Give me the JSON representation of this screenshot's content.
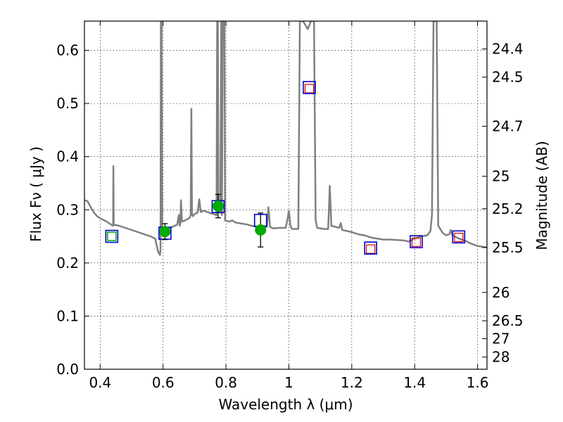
{
  "chart_data": {
    "type": "line",
    "xlabel": "Wavelength  λ (μm)",
    "ylabel": "Flux  Fν  ( μJy )",
    "y2label": "Magnitude (AB)",
    "xlim": [
      0.35,
      1.63
    ],
    "ylim": [
      0.0,
      0.655
    ],
    "grid": true,
    "x_ticks": [
      0.4,
      0.6,
      0.8,
      1.0,
      1.2,
      1.4,
      1.6
    ],
    "x_tick_labels": [
      "0.4",
      "0.6",
      "0.8",
      "1",
      "1.2",
      "1.4",
      "1.6"
    ],
    "y_ticks": [
      0.0,
      0.1,
      0.2,
      0.3,
      0.4,
      0.5,
      0.6
    ],
    "y_tick_labels": [
      "0.0",
      "0.1",
      "0.2",
      "0.3",
      "0.4",
      "0.5",
      "0.6"
    ],
    "y2_ticks": [
      {
        "label": "24.4",
        "flux": 0.6026
      },
      {
        "label": "24.5",
        "flux": 0.5495
      },
      {
        "label": "24.7",
        "flux": 0.4571
      },
      {
        "label": "25",
        "flux": 0.3631
      },
      {
        "label": "25.2",
        "flux": 0.302
      },
      {
        "label": "25.5",
        "flux": 0.2291
      },
      {
        "label": "26",
        "flux": 0.1445
      },
      {
        "label": "26.5",
        "flux": 0.0912
      },
      {
        "label": "27",
        "flux": 0.0575
      },
      {
        "label": "28",
        "flux": 0.0229
      }
    ],
    "colors": {
      "spectrum": "#808080",
      "model_box": "#0000cc",
      "observed": "#00aa00",
      "upper_limit_face": "#00aa00",
      "predicted_face": "#dd0000",
      "error_bar": "#000000"
    },
    "series": [
      {
        "kind": "spectrum",
        "points": [
          [
            0.35,
            0.318
          ],
          [
            0.36,
            0.316
          ],
          [
            0.37,
            0.305
          ],
          [
            0.38,
            0.295
          ],
          [
            0.39,
            0.288
          ],
          [
            0.4,
            0.284
          ],
          [
            0.42,
            0.278
          ],
          [
            0.435,
            0.272
          ],
          [
            0.441,
            0.27
          ],
          [
            0.442,
            0.382
          ],
          [
            0.443,
            0.272
          ],
          [
            0.46,
            0.27
          ],
          [
            0.48,
            0.266
          ],
          [
            0.5,
            0.262
          ],
          [
            0.52,
            0.258
          ],
          [
            0.54,
            0.254
          ],
          [
            0.56,
            0.25
          ],
          [
            0.575,
            0.246
          ],
          [
            0.58,
            0.232
          ],
          [
            0.585,
            0.22
          ],
          [
            0.59,
            0.215
          ],
          [
            0.592,
            0.225
          ],
          [
            0.593,
            0.655
          ],
          [
            0.595,
            0.655
          ],
          [
            0.597,
            0.26
          ],
          [
            0.61,
            0.264
          ],
          [
            0.63,
            0.268
          ],
          [
            0.645,
            0.272
          ],
          [
            0.65,
            0.29
          ],
          [
            0.653,
            0.27
          ],
          [
            0.655,
            0.275
          ],
          [
            0.657,
            0.318
          ],
          [
            0.66,
            0.278
          ],
          [
            0.67,
            0.28
          ],
          [
            0.685,
            0.285
          ],
          [
            0.688,
            0.29
          ],
          [
            0.69,
            0.49
          ],
          [
            0.692,
            0.292
          ],
          [
            0.695,
            0.288
          ],
          [
            0.7,
            0.292
          ],
          [
            0.71,
            0.295
          ],
          [
            0.715,
            0.32
          ],
          [
            0.72,
            0.296
          ],
          [
            0.73,
            0.298
          ],
          [
            0.74,
            0.296
          ],
          [
            0.75,
            0.294
          ],
          [
            0.76,
            0.292
          ],
          [
            0.77,
            0.29
          ],
          [
            0.772,
            0.655
          ],
          [
            0.774,
            0.655
          ],
          [
            0.776,
            0.3
          ],
          [
            0.782,
            0.295
          ],
          [
            0.785,
            0.655
          ],
          [
            0.787,
            0.29
          ],
          [
            0.79,
            0.655
          ],
          [
            0.795,
            0.655
          ],
          [
            0.797,
            0.28
          ],
          [
            0.81,
            0.278
          ],
          [
            0.82,
            0.28
          ],
          [
            0.83,
            0.276
          ],
          [
            0.85,
            0.274
          ],
          [
            0.87,
            0.272
          ],
          [
            0.88,
            0.27
          ],
          [
            0.9,
            0.268
          ],
          [
            0.92,
            0.27
          ],
          [
            0.93,
            0.268
          ],
          [
            0.935,
            0.305
          ],
          [
            0.94,
            0.268
          ],
          [
            0.95,
            0.265
          ],
          [
            0.97,
            0.266
          ],
          [
            0.99,
            0.266
          ],
          [
            0.995,
            0.28
          ],
          [
            1.0,
            0.298
          ],
          [
            1.005,
            0.27
          ],
          [
            1.01,
            0.264
          ],
          [
            1.03,
            0.264
          ],
          [
            1.035,
            0.655
          ],
          [
            1.045,
            0.655
          ],
          [
            1.06,
            0.64
          ],
          [
            1.07,
            0.655
          ],
          [
            1.08,
            0.655
          ],
          [
            1.085,
            0.28
          ],
          [
            1.09,
            0.266
          ],
          [
            1.11,
            0.264
          ],
          [
            1.125,
            0.264
          ],
          [
            1.13,
            0.345
          ],
          [
            1.135,
            0.27
          ],
          [
            1.16,
            0.266
          ],
          [
            1.165,
            0.275
          ],
          [
            1.17,
            0.262
          ],
          [
            1.2,
            0.258
          ],
          [
            1.22,
            0.254
          ],
          [
            1.24,
            0.252
          ],
          [
            1.26,
            0.248
          ],
          [
            1.28,
            0.246
          ],
          [
            1.3,
            0.244
          ],
          [
            1.32,
            0.244
          ],
          [
            1.35,
            0.243
          ],
          [
            1.37,
            0.242
          ],
          [
            1.38,
            0.24
          ],
          [
            1.4,
            0.246
          ],
          [
            1.42,
            0.25
          ],
          [
            1.44,
            0.252
          ],
          [
            1.45,
            0.26
          ],
          [
            1.455,
            0.29
          ],
          [
            1.46,
            0.655
          ],
          [
            1.47,
            0.655
          ],
          [
            1.475,
            0.27
          ],
          [
            1.49,
            0.256
          ],
          [
            1.5,
            0.252
          ],
          [
            1.51,
            0.254
          ],
          [
            1.515,
            0.262
          ],
          [
            1.52,
            0.252
          ],
          [
            1.54,
            0.246
          ],
          [
            1.56,
            0.242
          ],
          [
            1.58,
            0.236
          ],
          [
            1.6,
            0.232
          ],
          [
            1.63,
            0.229
          ]
        ]
      },
      {
        "kind": "model_photometry",
        "points": [
          [
            0.437,
            0.25
          ],
          [
            0.606,
            0.256
          ],
          [
            0.775,
            0.306
          ],
          [
            0.91,
            0.28
          ],
          [
            1.065,
            0.53
          ],
          [
            1.26,
            0.228
          ],
          [
            1.405,
            0.24
          ],
          [
            1.54,
            0.249
          ]
        ]
      },
      {
        "kind": "observed",
        "points": [
          [
            0.606,
            0.259,
            0.015
          ],
          [
            0.775,
            0.307,
            0.022
          ],
          [
            0.91,
            0.262,
            0.032
          ]
        ]
      },
      {
        "kind": "upper_limit",
        "points": [
          [
            0.437,
            0.25
          ]
        ]
      },
      {
        "kind": "predicted",
        "points": [
          [
            1.065,
            0.528
          ],
          [
            1.26,
            0.226
          ],
          [
            1.405,
            0.239
          ],
          [
            1.54,
            0.248
          ]
        ]
      }
    ]
  }
}
